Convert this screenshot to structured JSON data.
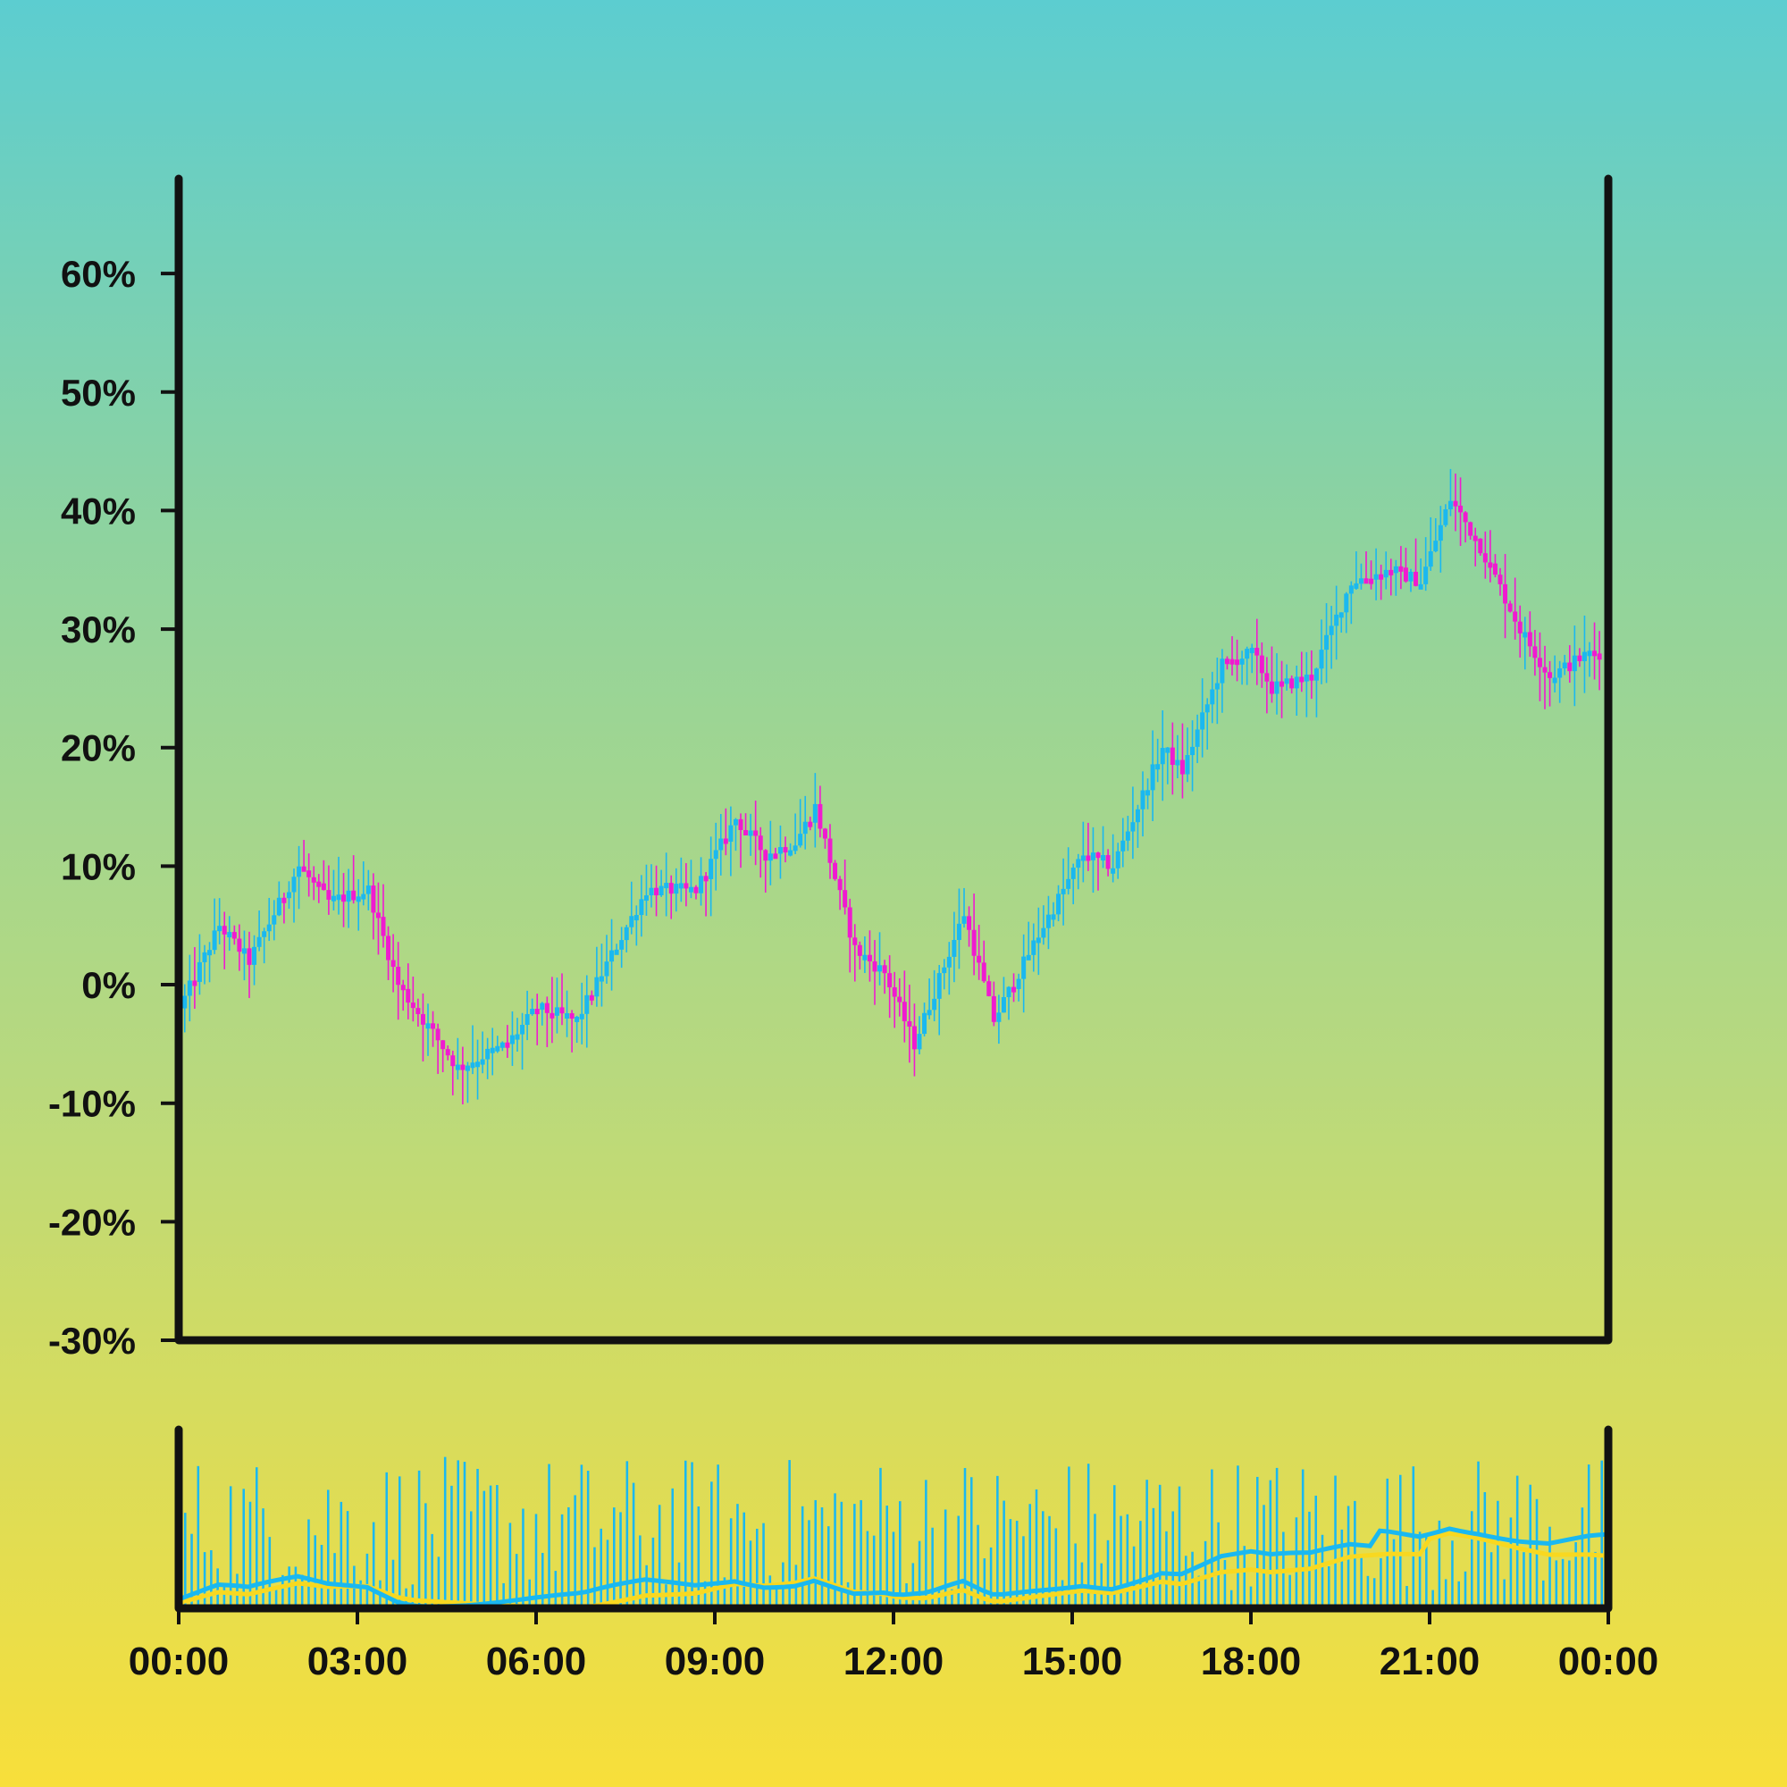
{
  "colors": {
    "up": "#1ab8f0",
    "down": "#f01ad0",
    "volume": "#1ab8f0",
    "ma_fast": "#1ab8f0",
    "ma_slow": "#f8d820",
    "axis": "#111111"
  },
  "chart_data": {
    "type": "candlestick",
    "title": "",
    "xlabel": "",
    "ylabel": "",
    "ylim": [
      -30,
      68
    ],
    "y_unit": "%",
    "y_ticks": [
      "-30%",
      "-20%",
      "-10%",
      "0%",
      "10%",
      "20%",
      "30%",
      "40%",
      "50%",
      "60%"
    ],
    "y_tick_values": [
      -30,
      -20,
      -10,
      0,
      10,
      20,
      30,
      40,
      50,
      60
    ],
    "x_ticks": [
      "00:00",
      "03:00",
      "06:00",
      "09:00",
      "12:00",
      "15:00",
      "18:00",
      "21:00",
      "00:00"
    ],
    "x_range": [
      "00:00",
      "24:00"
    ],
    "candle_interval_minutes": 5,
    "close_path": [
      {
        "time": "00:00",
        "value": -2
      },
      {
        "time": "00:40",
        "value": 5
      },
      {
        "time": "01:10",
        "value": 2
      },
      {
        "time": "02:00",
        "value": 10
      },
      {
        "time": "02:30",
        "value": 7
      },
      {
        "time": "03:10",
        "value": 8
      },
      {
        "time": "03:40",
        "value": 0
      },
      {
        "time": "04:40",
        "value": -7
      },
      {
        "time": "05:30",
        "value": -5
      },
      {
        "time": "06:00",
        "value": -2
      },
      {
        "time": "06:40",
        "value": -3
      },
      {
        "time": "07:50",
        "value": 8
      },
      {
        "time": "08:40",
        "value": 8
      },
      {
        "time": "09:20",
        "value": 14
      },
      {
        "time": "09:50",
        "value": 11
      },
      {
        "time": "10:20",
        "value": 12
      },
      {
        "time": "10:40",
        "value": 15
      },
      {
        "time": "11:20",
        "value": 3
      },
      {
        "time": "11:50",
        "value": 1
      },
      {
        "time": "12:20",
        "value": -5
      },
      {
        "time": "13:10",
        "value": 6
      },
      {
        "time": "13:40",
        "value": -3
      },
      {
        "time": "14:30",
        "value": 5
      },
      {
        "time": "15:10",
        "value": 11
      },
      {
        "time": "15:40",
        "value": 10
      },
      {
        "time": "16:30",
        "value": 20
      },
      {
        "time": "16:50",
        "value": 18
      },
      {
        "time": "17:30",
        "value": 27
      },
      {
        "time": "18:00",
        "value": 28
      },
      {
        "time": "18:20",
        "value": 25
      },
      {
        "time": "19:00",
        "value": 26
      },
      {
        "time": "19:40",
        "value": 34
      },
      {
        "time": "20:20",
        "value": 35
      },
      {
        "time": "20:50",
        "value": 34
      },
      {
        "time": "21:20",
        "value": 41
      },
      {
        "time": "21:50",
        "value": 37
      },
      {
        "time": "22:30",
        "value": 30
      },
      {
        "time": "23:00",
        "value": 26
      },
      {
        "time": "23:40",
        "value": 28
      }
    ],
    "volume_panel": {
      "series": [
        {
          "kind": "bar",
          "color": "#1ab8f0"
        },
        {
          "kind": "line",
          "color": "#1ab8f0"
        },
        {
          "kind": "line",
          "color": "#f8d820"
        }
      ]
    }
  }
}
